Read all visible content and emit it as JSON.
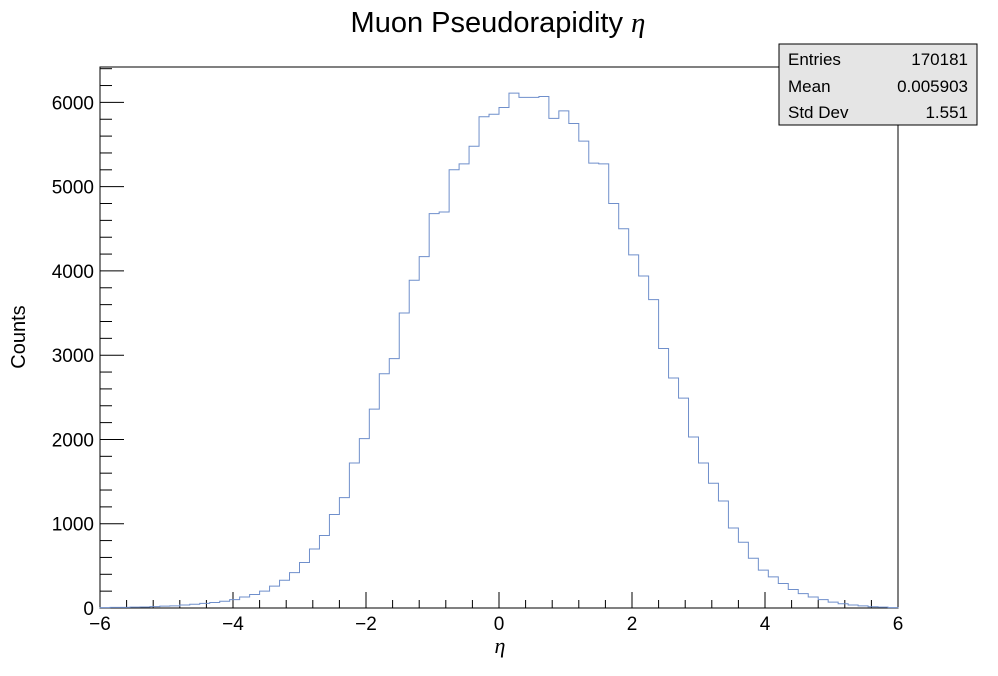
{
  "chart_data": {
    "type": "bar",
    "title_text": "Muon Pseudorapidity ",
    "title_symbol": "η",
    "xlabel": "η",
    "ylabel": "Counts",
    "xlim": [
      -6,
      6
    ],
    "ylim": [
      0,
      6420
    ],
    "x_ticks": [
      {
        "value": -6,
        "label": "−6"
      },
      {
        "value": -4,
        "label": "−4"
      },
      {
        "value": -2,
        "label": "−2"
      },
      {
        "value": 0,
        "label": "0"
      },
      {
        "value": 2,
        "label": "2"
      },
      {
        "value": 4,
        "label": "4"
      },
      {
        "value": 6,
        "label": "6"
      }
    ],
    "y_ticks": [
      {
        "value": 0,
        "label": "0"
      },
      {
        "value": 1000,
        "label": "1000"
      },
      {
        "value": 2000,
        "label": "2000"
      },
      {
        "value": 3000,
        "label": "3000"
      },
      {
        "value": 4000,
        "label": "4000"
      },
      {
        "value": 5000,
        "label": "5000"
      },
      {
        "value": 6000,
        "label": "6000"
      }
    ],
    "bin_edges_range": [
      -6,
      6
    ],
    "bin_count": 80,
    "values": [
      5,
      7,
      8,
      10,
      12,
      17,
      22,
      25,
      35,
      45,
      55,
      65,
      80,
      100,
      130,
      160,
      200,
      260,
      330,
      420,
      540,
      700,
      860,
      1110,
      1310,
      1720,
      2010,
      2360,
      2780,
      2960,
      3500,
      3890,
      4170,
      4680,
      4700,
      5200,
      5270,
      5480,
      5830,
      5860,
      5940,
      6110,
      6060,
      6060,
      6070,
      5810,
      5900,
      5750,
      5540,
      5280,
      5270,
      4800,
      4500,
      4190,
      3940,
      3660,
      3080,
      2730,
      2490,
      2030,
      1720,
      1480,
      1270,
      950,
      780,
      590,
      450,
      370,
      290,
      220,
      170,
      130,
      100,
      70,
      50,
      35,
      25,
      15,
      10,
      5
    ],
    "line_color": "#6f8fcb",
    "stats": {
      "entries_label": "Entries",
      "entries_value": "170181",
      "mean_label": "Mean",
      "mean_value": "0.005903",
      "stddev_label": "Std Dev",
      "stddev_value": "1.551",
      "fill_color": "#e5e5e5"
    }
  }
}
